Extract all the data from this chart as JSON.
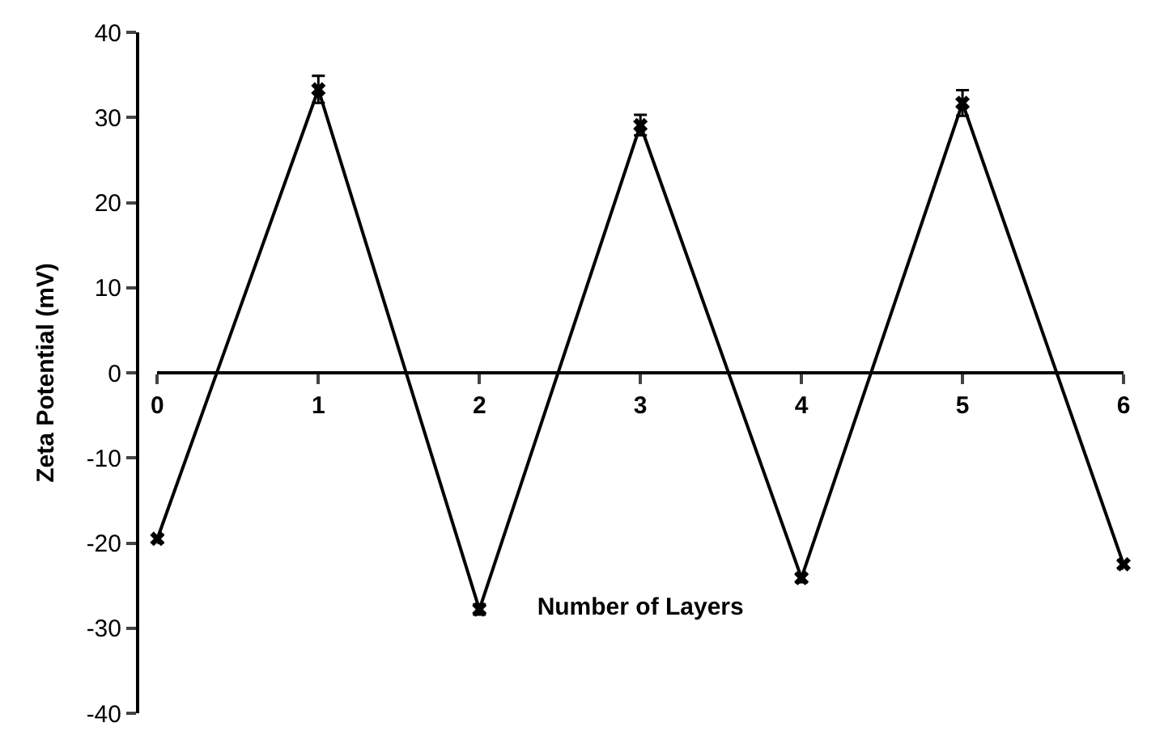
{
  "chart_data": {
    "type": "line",
    "xlabel": "Number of Layers",
    "ylabel": "Zeta Potential (mV)",
    "x": [
      0,
      1,
      2,
      3,
      4,
      5,
      6
    ],
    "series": [
      {
        "color": "#000000",
        "values": [
          -19.5,
          33.3,
          -27.8,
          29.1,
          -24.1,
          31.7,
          -22.5
        ],
        "errors": [
          0.5,
          1.6,
          0.6,
          1.2,
          0.5,
          1.5,
          0.5
        ]
      }
    ],
    "xlim": [
      0,
      6
    ],
    "xticks": [
      0,
      1,
      2,
      3,
      4,
      5,
      6
    ],
    "ylim": [
      -40,
      40
    ],
    "yticks": [
      -40,
      -30,
      -20,
      -10,
      0,
      10,
      20,
      30,
      40
    ],
    "legend": false,
    "marker": "cross",
    "line_style": "solid"
  }
}
